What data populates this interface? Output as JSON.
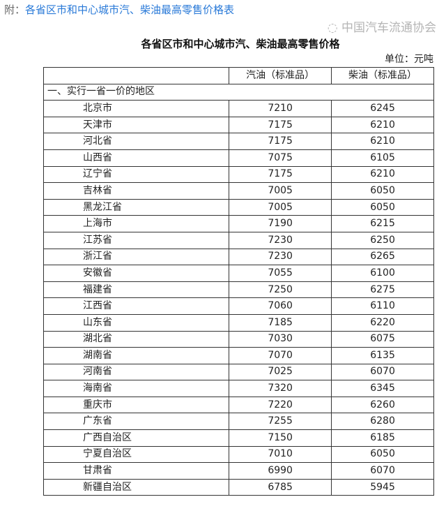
{
  "note": {
    "prefix": "附：",
    "link": "各省区市和中心城市汽、柴油最高零售价格表"
  },
  "table": {
    "title": "各省区市和中心城市汽、柴油最高零售价格",
    "unit": "单位：元吨",
    "headers": [
      "",
      "汽油（标准品）",
      "柴油（标准品）"
    ],
    "section": "一、实行一省一价的地区",
    "rows": [
      {
        "region": "北京市",
        "gasoline": "7210",
        "diesel": "6245"
      },
      {
        "region": "天津市",
        "gasoline": "7175",
        "diesel": "6210"
      },
      {
        "region": "河北省",
        "gasoline": "7175",
        "diesel": "6210"
      },
      {
        "region": "山西省",
        "gasoline": "7075",
        "diesel": "6105"
      },
      {
        "region": "辽宁省",
        "gasoline": "7175",
        "diesel": "6210"
      },
      {
        "region": "吉林省",
        "gasoline": "7005",
        "diesel": "6050"
      },
      {
        "region": "黑龙江省",
        "gasoline": "7005",
        "diesel": "6050"
      },
      {
        "region": "上海市",
        "gasoline": "7190",
        "diesel": "6215"
      },
      {
        "region": "江苏省",
        "gasoline": "7230",
        "diesel": "6250"
      },
      {
        "region": "浙江省",
        "gasoline": "7230",
        "diesel": "6265"
      },
      {
        "region": "安徽省",
        "gasoline": "7055",
        "diesel": "6100"
      },
      {
        "region": "福建省",
        "gasoline": "7250",
        "diesel": "6275"
      },
      {
        "region": "江西省",
        "gasoline": "7060",
        "diesel": "6110"
      },
      {
        "region": "山东省",
        "gasoline": "7185",
        "diesel": "6220"
      },
      {
        "region": "湖北省",
        "gasoline": "7030",
        "diesel": "6075"
      },
      {
        "region": "湖南省",
        "gasoline": "7070",
        "diesel": "6135"
      },
      {
        "region": "河南省",
        "gasoline": "7025",
        "diesel": "6070"
      },
      {
        "region": "海南省",
        "gasoline": "7320",
        "diesel": "6345"
      },
      {
        "region": "重庆市",
        "gasoline": "7220",
        "diesel": "6260"
      },
      {
        "region": "广东省",
        "gasoline": "7255",
        "diesel": "6280"
      },
      {
        "region": "广西自治区",
        "gasoline": "7150",
        "diesel": "6185"
      },
      {
        "region": "宁夏自治区",
        "gasoline": "7010",
        "diesel": "6050"
      },
      {
        "region": "甘肃省",
        "gasoline": "6990",
        "diesel": "6070"
      },
      {
        "region": "新疆自治区",
        "gasoline": "6785",
        "diesel": "5945"
      }
    ]
  },
  "watermark": "中国汽车流通协会"
}
